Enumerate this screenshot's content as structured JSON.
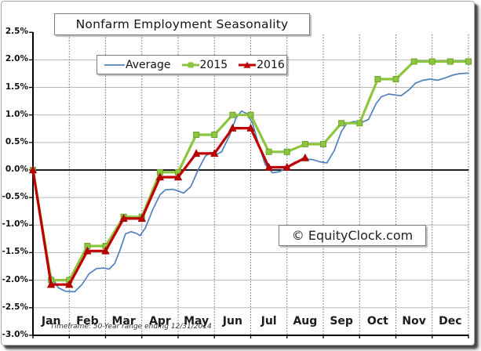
{
  "chart_data": {
    "type": "line",
    "title": "Nonfarm Employment Seasonality",
    "watermark": "© EquityClock.com",
    "footnote": "Timeframe: 50-Year range ending 12/31/2014",
    "x_axis": {
      "labels": [
        "Jan",
        "Feb",
        "Mar",
        "Apr",
        "May",
        "Jun",
        "Jul",
        "Aug",
        "Sep",
        "Oct",
        "Nov",
        "Dec"
      ]
    },
    "y_axis": {
      "unit": "%",
      "min": -3.0,
      "max": 2.5,
      "tick_labels": [
        "2.5%",
        "2.0%",
        "1.5%",
        "1.0%",
        "0.5%",
        "0.0%",
        "-0.5%",
        "-1.0%",
        "-1.5%",
        "-2.0%",
        "-2.5%",
        "-3.0%"
      ],
      "tick_values": [
        2.5,
        2.0,
        1.5,
        1.0,
        0.5,
        0.0,
        -0.5,
        -1.0,
        -1.5,
        -2.0,
        -2.5,
        -3.0
      ]
    },
    "colors": {
      "grid_horizontal": "#b8b8b8",
      "grid_vertical": "#6e6e6e",
      "axis": "#000000",
      "zero_line": "#000000",
      "background": "#ffffff"
    },
    "legend": {
      "position": "top-inside",
      "items": [
        {
          "label": "Average",
          "color": "#4f81bd",
          "marker": "line"
        },
        {
          "label": "2015",
          "color": "#8cc63f",
          "marker": "square"
        },
        {
          "label": "2016",
          "color": "#c00000",
          "marker": "triangle"
        }
      ]
    },
    "series": [
      {
        "name": "Average",
        "style": "smooth",
        "color": "#4f81bd",
        "points": [
          [
            0,
            0
          ],
          [
            0.12,
            -0.5
          ],
          [
            0.3,
            -1.3
          ],
          [
            0.5,
            -1.92
          ],
          [
            0.7,
            -2.14
          ],
          [
            0.9,
            -2.2
          ],
          [
            1.15,
            -2.21
          ],
          [
            1.35,
            -2.08
          ],
          [
            1.55,
            -1.88
          ],
          [
            1.75,
            -1.79
          ],
          [
            1.95,
            -1.78
          ],
          [
            2.1,
            -1.8
          ],
          [
            2.25,
            -1.7
          ],
          [
            2.4,
            -1.45
          ],
          [
            2.55,
            -1.16
          ],
          [
            2.7,
            -1.12
          ],
          [
            2.85,
            -1.15
          ],
          [
            2.95,
            -1.19
          ],
          [
            3.1,
            -1.05
          ],
          [
            3.3,
            -0.72
          ],
          [
            3.5,
            -0.45
          ],
          [
            3.65,
            -0.36
          ],
          [
            3.85,
            -0.35
          ],
          [
            4.0,
            -0.38
          ],
          [
            4.15,
            -0.42
          ],
          [
            4.35,
            -0.3
          ],
          [
            4.55,
            0.0
          ],
          [
            4.75,
            0.25
          ],
          [
            4.9,
            0.32
          ],
          [
            5.05,
            0.28
          ],
          [
            5.2,
            0.33
          ],
          [
            5.4,
            0.6
          ],
          [
            5.6,
            0.95
          ],
          [
            5.75,
            1.07
          ],
          [
            5.9,
            1.02
          ],
          [
            6.05,
            0.85
          ],
          [
            6.2,
            0.5
          ],
          [
            6.4,
            0.1
          ],
          [
            6.6,
            -0.05
          ],
          [
            6.8,
            -0.03
          ],
          [
            7.0,
            0.05
          ],
          [
            7.2,
            0.14
          ],
          [
            7.45,
            0.2
          ],
          [
            7.7,
            0.19
          ],
          [
            7.9,
            0.15
          ],
          [
            8.1,
            0.13
          ],
          [
            8.3,
            0.35
          ],
          [
            8.5,
            0.7
          ],
          [
            8.65,
            0.85
          ],
          [
            8.85,
            0.88
          ],
          [
            9.05,
            0.86
          ],
          [
            9.25,
            0.92
          ],
          [
            9.45,
            1.2
          ],
          [
            9.6,
            1.33
          ],
          [
            9.8,
            1.38
          ],
          [
            10.0,
            1.36
          ],
          [
            10.15,
            1.35
          ],
          [
            10.35,
            1.45
          ],
          [
            10.55,
            1.58
          ],
          [
            10.75,
            1.63
          ],
          [
            10.95,
            1.65
          ],
          [
            11.15,
            1.63
          ],
          [
            11.35,
            1.67
          ],
          [
            11.55,
            1.72
          ],
          [
            11.75,
            1.75
          ],
          [
            12.0,
            1.76
          ]
        ]
      },
      {
        "name": "2015",
        "style": "step",
        "color": "#8cc63f",
        "marker": "square",
        "marker_edge": "#6fa32f",
        "start_value": 0.0,
        "monthly_values": [
          -2.0,
          -1.38,
          -0.85,
          -0.04,
          0.64,
          1.0,
          0.33,
          0.47,
          0.85,
          1.65,
          1.97,
          1.97
        ]
      },
      {
        "name": "2016",
        "style": "step",
        "color": "#c00000",
        "marker": "triangle",
        "marker_edge": "#990000",
        "start_value": 0.0,
        "monthly_values": [
          -2.08,
          -1.47,
          -0.88,
          -0.13,
          0.3,
          0.76,
          0.05,
          0.22
        ],
        "last_month_partial": true
      }
    ]
  }
}
